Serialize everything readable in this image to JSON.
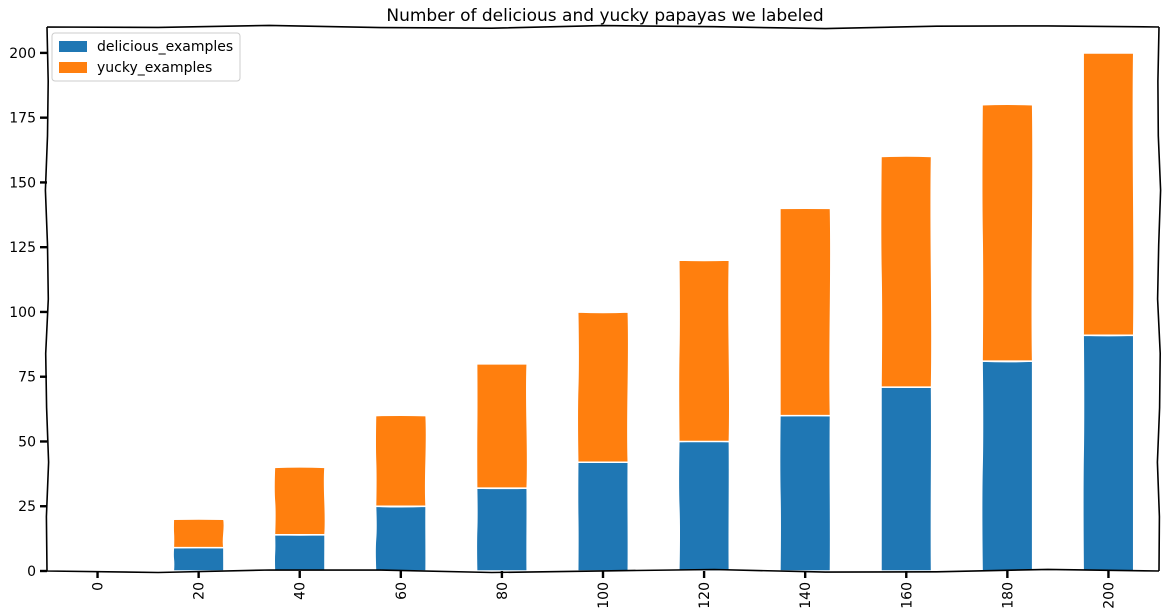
{
  "chart_data": {
    "type": "bar",
    "stacked": true,
    "title": "Number of delicious and yucky papayas we labeled",
    "xlabel": "",
    "ylabel": "",
    "categories": [
      "0",
      "20",
      "40",
      "60",
      "80",
      "100",
      "120",
      "140",
      "160",
      "180",
      "200"
    ],
    "series": [
      {
        "name": "delicious_examples",
        "color": "#1f77b4",
        "values": [
          0,
          9,
          14,
          25,
          32,
          42,
          50,
          60,
          71,
          81,
          91
        ]
      },
      {
        "name": "yucky_examples",
        "color": "#ff7f0e",
        "values": [
          0,
          11,
          26,
          35,
          48,
          58,
          70,
          80,
          89,
          99,
          109
        ]
      }
    ],
    "ylim": [
      0,
      210
    ],
    "yticks": [
      0,
      25,
      50,
      75,
      100,
      125,
      150,
      175,
      200
    ],
    "grid": false,
    "legend_position": "top-left",
    "style": "hand-drawn"
  }
}
